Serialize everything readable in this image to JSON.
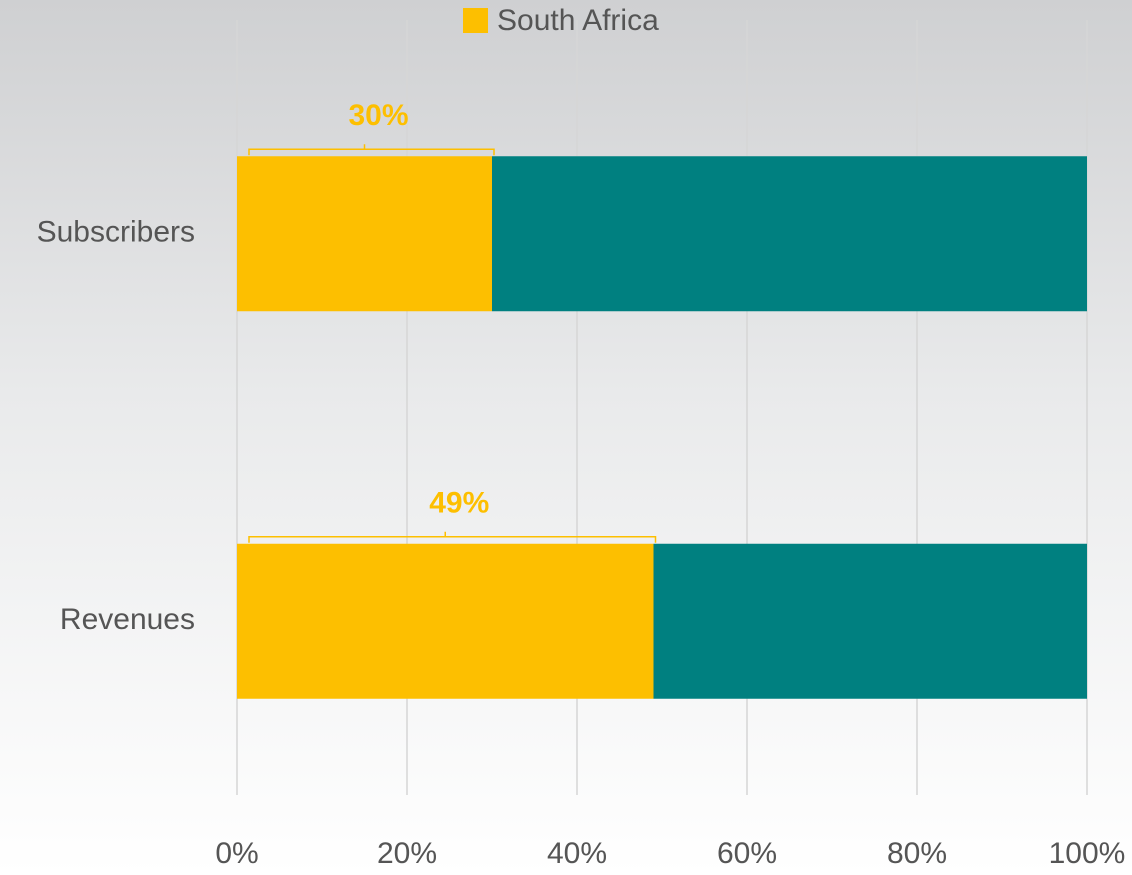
{
  "chart_data": {
    "type": "stacked_barh",
    "categories": [
      "Subscribers",
      "Revenues"
    ],
    "series": [
      {
        "name": "South Africa",
        "color": "#fdbf00",
        "values": [
          30,
          49
        ],
        "value_labels": [
          "30%",
          "49%"
        ]
      },
      {
        "color": "#008080",
        "values": [
          70,
          51
        ]
      }
    ],
    "xlim": [
      0,
      100
    ],
    "xticks": [
      {
        "value": 0,
        "label": "0%"
      },
      {
        "value": 20,
        "label": "20%"
      },
      {
        "value": 40,
        "label": "40%"
      },
      {
        "value": 60,
        "label": "60%"
      },
      {
        "value": 80,
        "label": "80%"
      },
      {
        "value": 100,
        "label": "100%"
      }
    ],
    "grid": true,
    "legend": "top"
  }
}
